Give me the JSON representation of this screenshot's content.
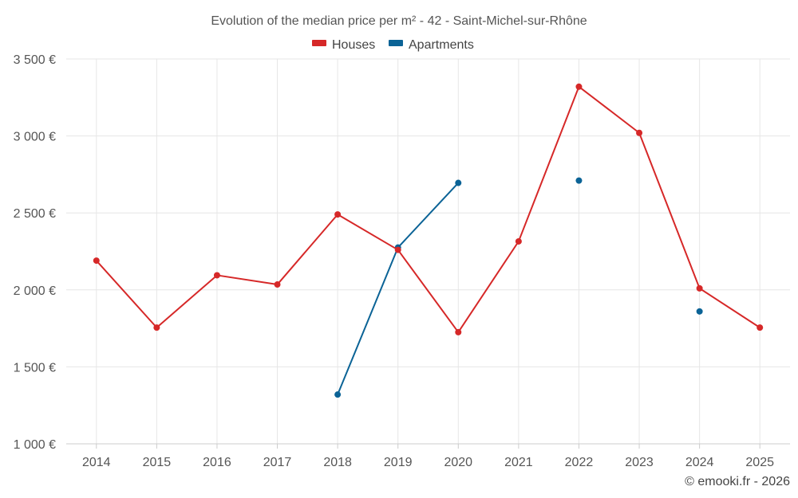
{
  "chart_data": {
    "type": "line",
    "title": "Evolution of the median price per m² - 42 - Saint-Michel-sur-Rhône",
    "categories": [
      "2014",
      "2015",
      "2016",
      "2017",
      "2018",
      "2019",
      "2020",
      "2021",
      "2022",
      "2023",
      "2024",
      "2025"
    ],
    "y_ticks": [
      "1 000 €",
      "1 500 €",
      "2 000 €",
      "2 500 €",
      "3 000 €",
      "3 500 €"
    ],
    "y_tick_values": [
      1000,
      1500,
      2000,
      2500,
      3000,
      3500
    ],
    "ylim": [
      1000,
      3500
    ],
    "grid": true,
    "legend_position": "top-center",
    "series": [
      {
        "name": "Houses",
        "color": "#d62828",
        "values": [
          2190,
          1755,
          2095,
          2035,
          2490,
          2260,
          1725,
          2315,
          3320,
          3020,
          2010,
          1755
        ]
      },
      {
        "name": "Apartments",
        "color": "#0b6396",
        "values": [
          null,
          null,
          null,
          null,
          1320,
          2275,
          2695,
          null,
          2710,
          null,
          1860,
          null
        ]
      }
    ],
    "credit": "© emooki.fr - 2026"
  }
}
